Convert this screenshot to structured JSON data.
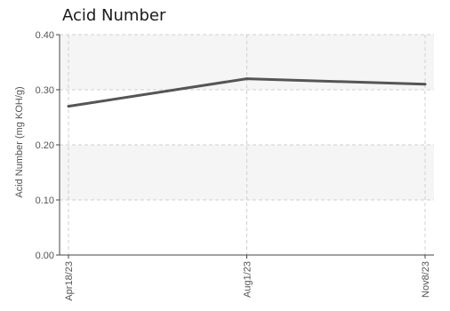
{
  "chart_data": {
    "type": "line",
    "title": "Acid Number",
    "ylabel": "Acid Number (mg KOH/g)",
    "xlabel": "",
    "categories": [
      "Apr18/23",
      "Aug1/23",
      "Nov8/23"
    ],
    "series": [
      {
        "values": [
          0.27,
          0.32,
          0.31
        ]
      }
    ],
    "ylim": [
      0,
      0.4
    ],
    "yticks": [
      "0.00",
      "0.10",
      "0.20",
      "0.30",
      "0.40"
    ],
    "grid": true
  },
  "colors": {
    "line": "#555555",
    "band_shade": "#f5f5f5",
    "grid": "#d0d0d0",
    "axis": "#444444",
    "text": "#555555"
  }
}
